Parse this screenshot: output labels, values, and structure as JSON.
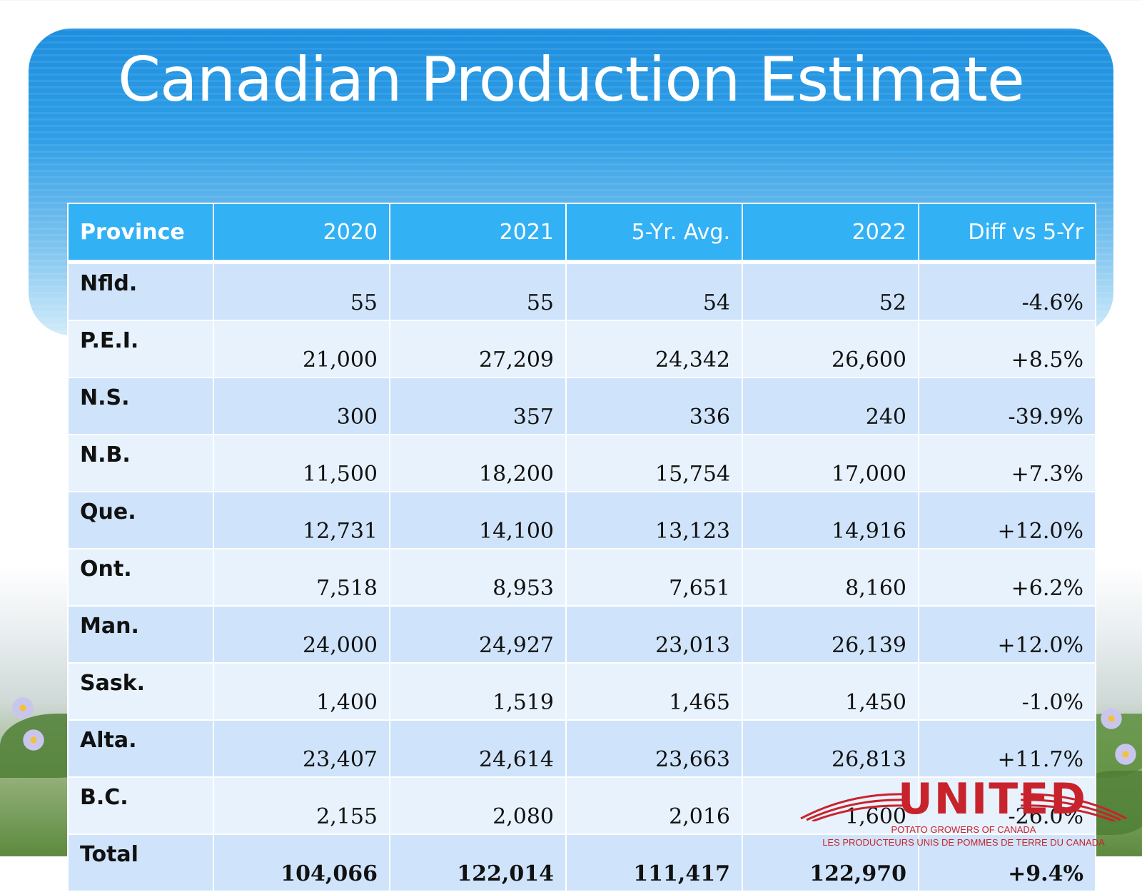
{
  "slide": {
    "title": "Canadian Production Estimate"
  },
  "table": {
    "headers": [
      "Province",
      "2020",
      "2021",
      "5-Yr. Avg.",
      "2022",
      "Diff vs 5-Yr"
    ],
    "rows": [
      [
        "Nfld.",
        "55",
        "55",
        "54",
        "52",
        "-4.6%"
      ],
      [
        "P.E.I.",
        "21,000",
        "27,209",
        "24,342",
        "26,600",
        "+8.5%"
      ],
      [
        "N.S.",
        "300",
        "357",
        "336",
        "240",
        "-39.9%"
      ],
      [
        "N.B.",
        "11,500",
        "18,200",
        "15,754",
        "17,000",
        "+7.3%"
      ],
      [
        "Que.",
        "12,731",
        "14,100",
        "13,123",
        "14,916",
        "+12.0%"
      ],
      [
        "Ont.",
        "7,518",
        "8,953",
        "7,651",
        "8,160",
        "+6.2%"
      ],
      [
        "Man.",
        "24,000",
        "24,927",
        "23,013",
        "26,139",
        "+12.0%"
      ],
      [
        "Sask.",
        "1,400",
        "1,519",
        "1,465",
        "1,450",
        "-1.0%"
      ],
      [
        "Alta.",
        "23,407",
        "24,614",
        "23,663",
        "26,813",
        "+11.7%"
      ],
      [
        "B.C.",
        "2,155",
        "2,080",
        "2,016",
        "1,600",
        "-26.0%"
      ],
      [
        "Total",
        "104,066",
        "122,014",
        "111,417",
        "122,970",
        "+9.4%"
      ]
    ]
  },
  "logo": {
    "word": "UNITED",
    "line1": "POTATO GROWERS OF CANADA",
    "line2": "LES PRODUCTEURS UNIS DE POMMES DE TERRE DU CANADA",
    "color": "#c8232c"
  },
  "colors": {
    "header_bg": "#33b1f5",
    "row_odd": "#cfe4fb",
    "row_even": "#e8f2fd"
  }
}
